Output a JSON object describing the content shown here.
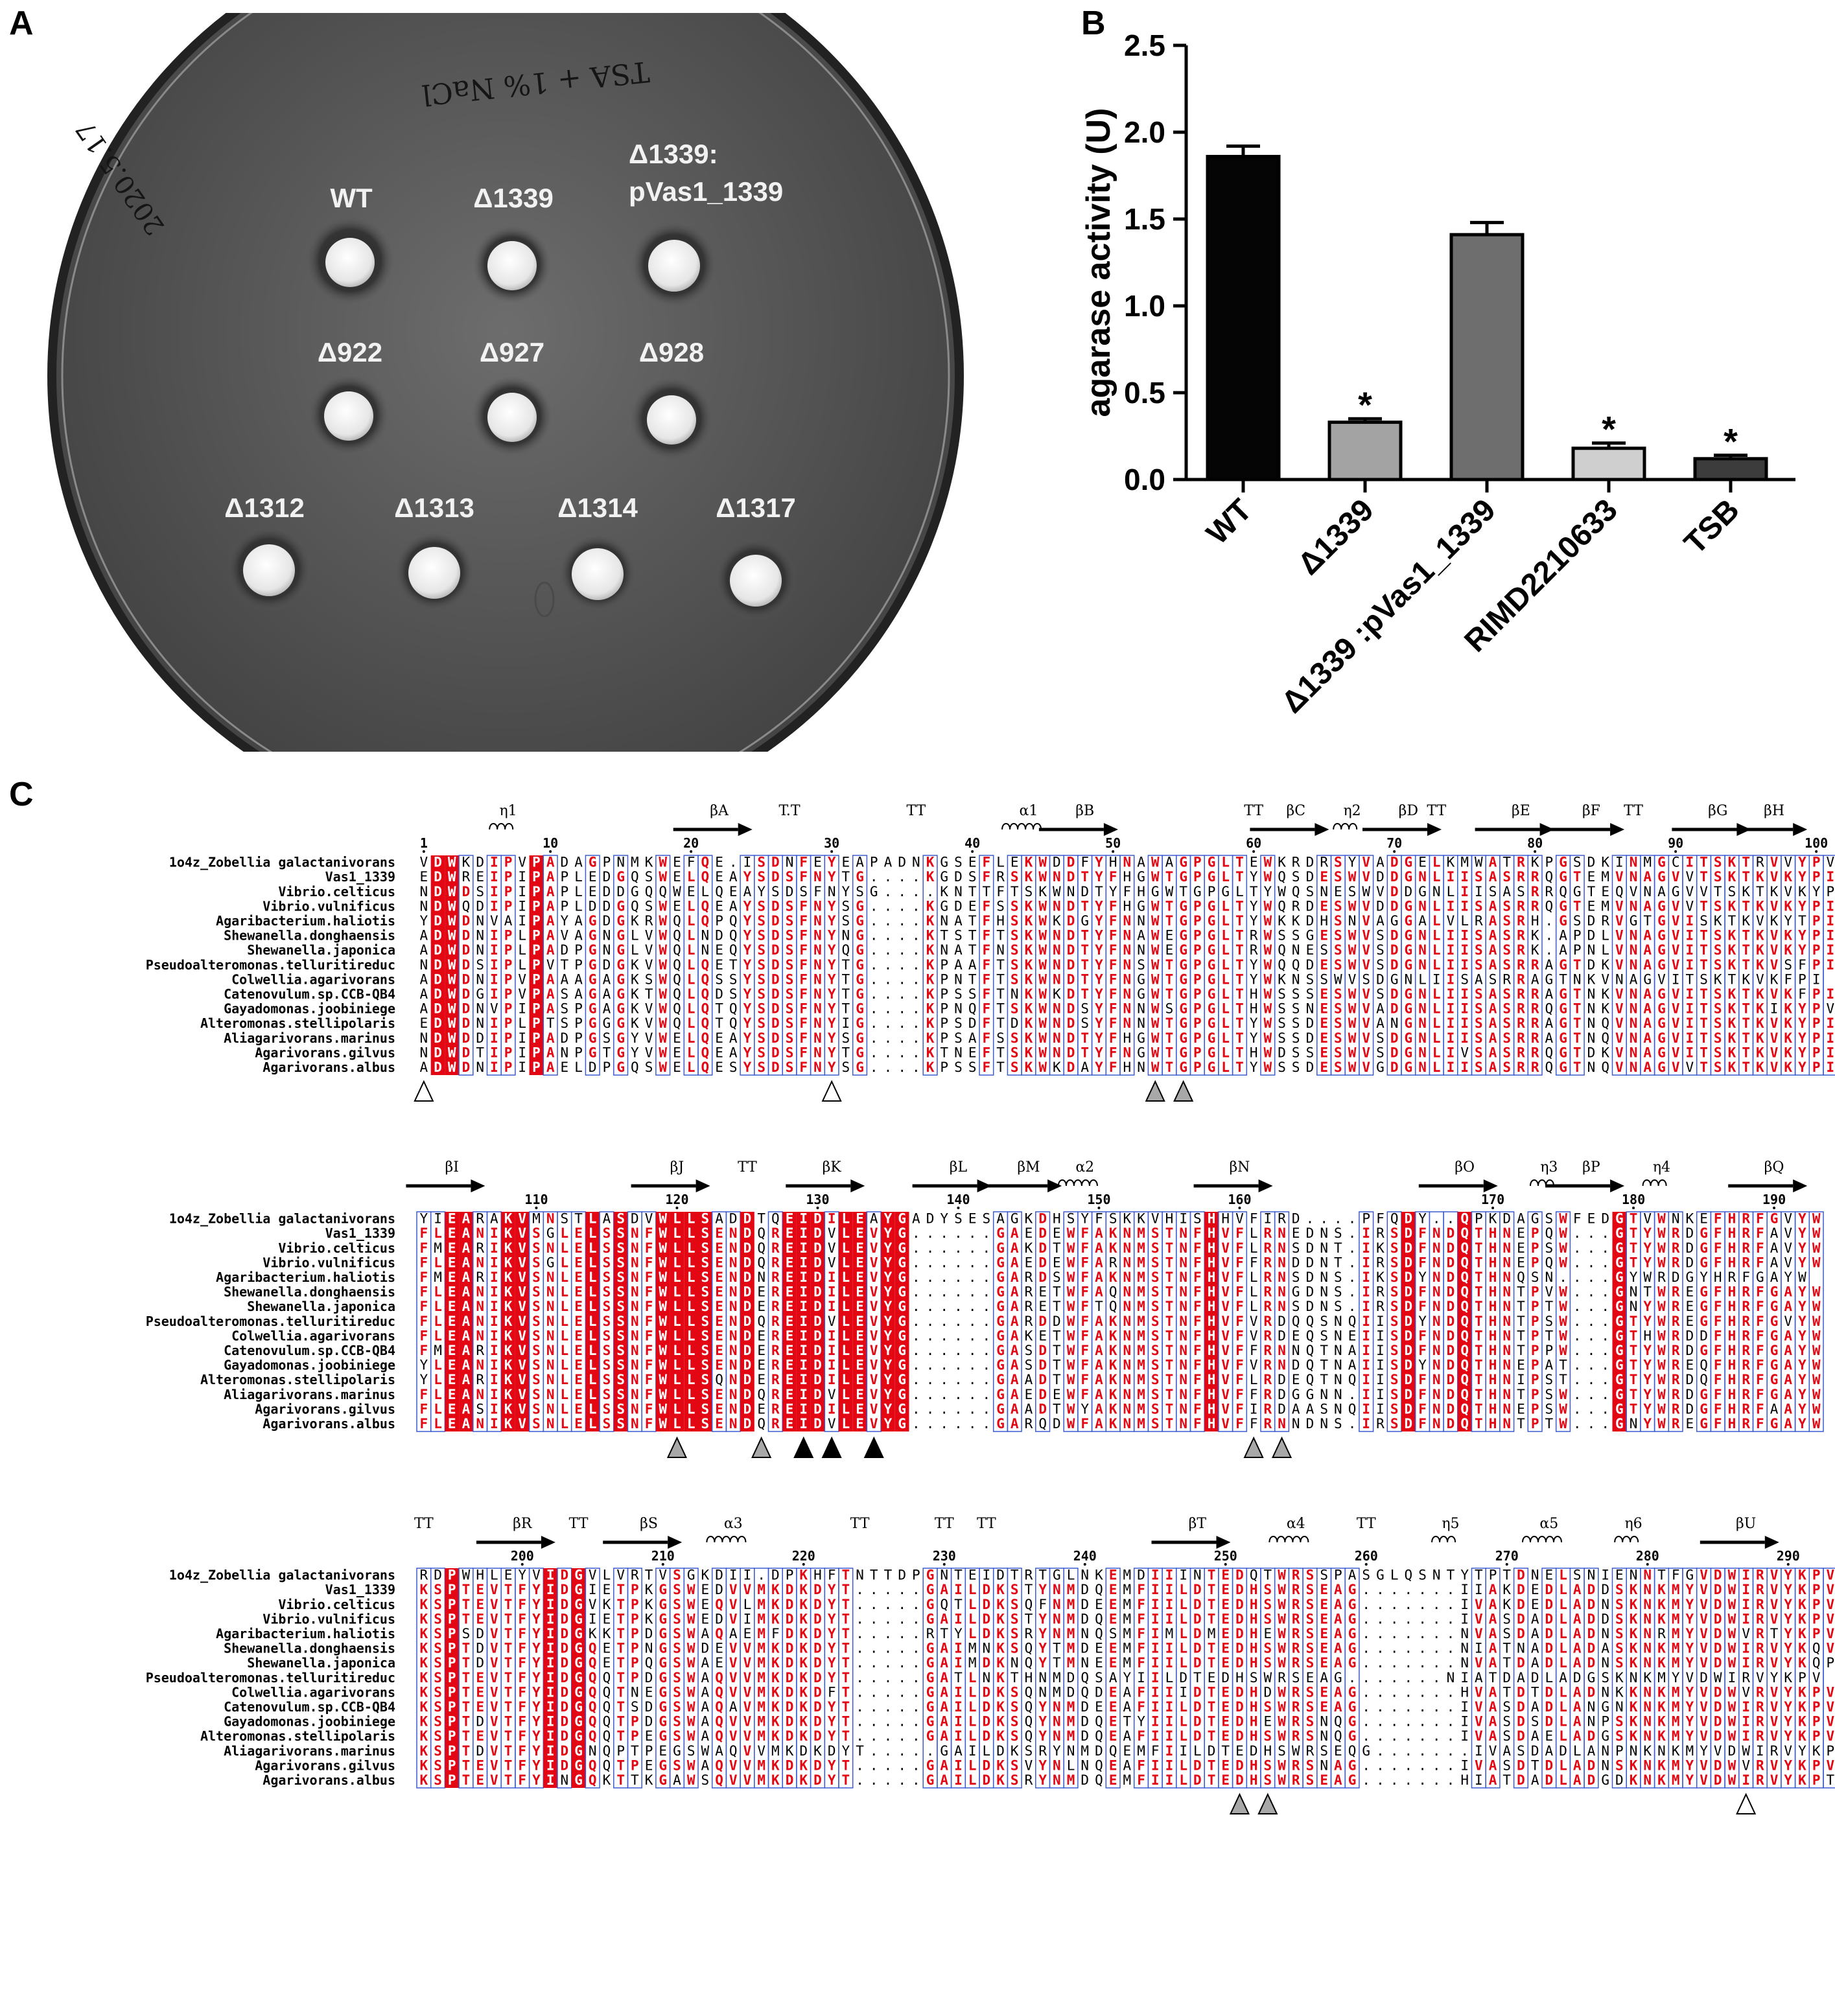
{
  "panels": {
    "a": "A",
    "b": "B",
    "c": "C"
  },
  "plate": {
    "handwriting_top": "TSA + 1% NaCl",
    "handwriting_left": "2020.5.17",
    "spots": [
      {
        "label": "WT"
      },
      {
        "label": "Δ1339"
      },
      {
        "label_line1": "Δ1339:",
        "label_line2": "pVas1_1339"
      },
      {
        "label": "Δ922"
      },
      {
        "label": "Δ927"
      },
      {
        "label": "Δ928"
      },
      {
        "label": "Δ1312"
      },
      {
        "label": "Δ1313"
      },
      {
        "label": "Δ1314"
      },
      {
        "label": "Δ1317"
      }
    ]
  },
  "chart_data": {
    "type": "bar",
    "title": "",
    "xlabel": "",
    "ylabel": "agarase activity (U)",
    "ylim": [
      0,
      2.5
    ],
    "yticks": [
      "0.0",
      "0.5",
      "1.0",
      "1.5",
      "2.0",
      "2.5"
    ],
    "categories": [
      "WT",
      "Δ1339",
      "Δ1339 :pVas1_1339",
      "RIMD2210633",
      "TSB"
    ],
    "values": [
      1.86,
      0.33,
      1.41,
      0.18,
      0.12
    ],
    "errors": [
      0.06,
      0.02,
      0.07,
      0.03,
      0.02
    ],
    "significance": [
      "",
      "*",
      "",
      "*",
      "*"
    ],
    "colors": [
      "#050505",
      "#a3a3a3",
      "#6e6e6e",
      "#cfcfcf",
      "#3c3c3c"
    ]
  },
  "alignment": {
    "species": [
      "1o4z_Zobellia galactanivorans",
      "Vas1_1339",
      "Vibrio.celticus",
      "Vibrio.vulnificus",
      "Agaribacterium.haliotis",
      "Shewanella.donghaensis",
      "Shewanella.japonica",
      "Pseudoalteromonas.telluritireduc",
      "Colwellia.agarivorans",
      "Catenovulum.sp.CCB-QB4",
      "Gayadomonas.joobiniege",
      "Alteromonas.stellipolaris",
      "Aliagarivorans.marinus",
      "Agarivorans.gilvus",
      "Agarivorans.albus"
    ],
    "blocks": [
      {
        "labels": [
          {
            "t": "η1",
            "c": 6
          },
          {
            "t": "βA",
            "c": 21
          },
          {
            "t": "T.T",
            "c": 26
          },
          {
            "t": "TT",
            "c": 35
          },
          {
            "t": "α1",
            "c": 43
          },
          {
            "t": "βB",
            "c": 47
          },
          {
            "t": "TT",
            "c": 59
          },
          {
            "t": "βC",
            "c": 62
          },
          {
            "t": "η2",
            "c": 66
          },
          {
            "t": "βD",
            "c": 70
          },
          {
            "t": "TT",
            "c": 72
          },
          {
            "t": "βE",
            "c": 78
          },
          {
            "t": "βF",
            "c": 83
          },
          {
            "t": "TT",
            "c": 86
          },
          {
            "t": "βG",
            "c": 92
          },
          {
            "t": "βH",
            "c": 96
          }
        ],
        "numbers": [
          {
            "t": "1",
            "c": 0
          },
          {
            "t": "10",
            "c": 9
          },
          {
            "t": "20",
            "c": 19
          },
          {
            "t": "30",
            "c": 29
          },
          {
            "t": "40",
            "c": 39
          },
          {
            "t": "50",
            "c": 49
          },
          {
            "t": "60",
            "c": 59
          },
          {
            "t": "70",
            "c": 69
          },
          {
            "t": "80",
            "c": 79
          },
          {
            "t": "90",
            "c": 89
          },
          {
            "t": "100",
            "c": 99
          }
        ],
        "rows": [
          "VDWKDIPVPADAGPNMKWEFQE.ISDNFEYEAPADNKGSEFLEKWDDFYHNAWAGPGLTEWKRDRSYVADGELKMWATRKPGSDKINMGCITSKTRVVYPV",
          "EDWREIPIPAPLEDGQSWELQEAYSDSFNYTG....KGDSFRSKWNDTYFHGWTGPGLTYWQSDESWVDDGNLIISASRRQGTEMVNAGVVTSKTKVKYPI",
          "NDWDSIPIPAPLEDDGQQWELQEAYSDSFNYSG....KNTTFTSKWNDTYFHGWTGPGLTYWQSNESWVDDGNLIISASRRQGTEQVNAGVVTSKTKVKYPI",
          "NDWQDIPIPAPLDDGQSWELQEAYSDSFNYSG....KGDEFSSKWNDTYFHGWTGPGLTYWQRDESWVDDGNLIISASRRQGTEMVNAGVVTSKTKVKYPI",
          "YDWDNVAIPAYAGDGKRWQLQPQYSDSFNYSG....KNATFHSKWKDGYFNNWTGPGLTYWKKDHSNVAGGALVLRASRH.GSDRVGTGVISKTKVKYTPI",
          "ADWDNIPLPAVAGNGLVWQLNDQYSDSFNYNG....KTSTFTSKWNDTYFNAWEGPGLTRWSSGESWVSDGNLIISASRK.APDLVNAGVITSKTKVKYPI",
          "ADWDNIPLPADPGNGLVWQLNEQYSDSFNYQG....KNATFNSKWNDTYFNNWEGPGLTRWQNESSWVSDGNLIISASRK.APNLVNAGVITSKTKVKYPI",
          "NDWDSIPLPVTPGDGKVWQLQETYSDSFNYTG....KPAAFTSKWNDTYFNSWTGPGLTYWQQDESWVSDGNLIISASRRAGTDKVNAGVITSKTKVSFPI",
          "ADWDNIPVPAAAGAGKSWQLQSSYSDSFNYTG....KPNTFTSKWNDTYFNGWTGPGLTYWKNSSWVSDGNLIISASRRAGTNKVNAGVITSKTKVKFPI",
          "ADWDGIPVPASAGAGKTWQLQDSYSDSFNYTG....KPSSFTNKWKDTYFNGWTGPGLTHWSSSESWVSDGNLIISASRRAGTNKVNAGVITSKTKVKFPI",
          "ADWDNVPIPASPGAGKVWQLQTQYSDSFNYTG....KPNQFTSKWNDSYFNNWSGPGLTHWSSNESWVADGNLIISASRRQGTNKVNAGVITSKTKIKYPV",
          "EDWDNIPLPTSPGGGKVWQLQTQYSDSFNYIG....KPSDFTDKWNDSYFNNWTGPGLTYWSSDESWVANGNLIISASRRAGTNQVNAGVITSKTKVKYPI",
          "NDWDDIPIPADPGSGYVWELQEAYSDSFNYSG....KPSAFSSKWNDTYFHGWTGPGLTYWSSDESWVSDGNLIISASRRAGTNQVNAGVITSKTKVKYPI",
          "NDWDTIPIPANPGTGYVWELQEAYSDSFNYTG....KTNEFTSKWNDTYFNGWTGPGLTHWDSSESWVSDGNLIVSASRRQGTDKVNAGVITSKTKVKYPI",
          "ADWDNIPIPAELDPGQSWELQESYSDSFNYSG....KPSSFTSKWKDAYFHNWTGPGLTYWSSDESWVGDGNLIISASRRQGTNQVNAGVVTSKTKVKYPI"
        ],
        "markers": [
          {
            "c": 0,
            "style": "open"
          },
          {
            "c": 29,
            "style": "open"
          },
          {
            "c": 52,
            "style": "gray"
          },
          {
            "c": 54,
            "style": "gray"
          }
        ]
      },
      {
        "labels": [
          {
            "t": "βI",
            "c": 2
          },
          {
            "t": "βJ",
            "c": 18
          },
          {
            "t": "TT",
            "c": 23
          },
          {
            "t": "βK",
            "c": 29
          },
          {
            "t": "βL",
            "c": 38
          },
          {
            "t": "βM",
            "c": 43
          },
          {
            "t": "α2",
            "c": 47
          },
          {
            "t": "βN",
            "c": 58
          },
          {
            "t": "βO",
            "c": 74
          },
          {
            "t": "η3",
            "c": 80
          },
          {
            "t": "βP",
            "c": 83
          },
          {
            "t": "η4",
            "c": 88
          },
          {
            "t": "βQ",
            "c": 96
          }
        ],
        "numbers": [
          {
            "t": "110",
            "c": 8
          },
          {
            "t": "120",
            "c": 18
          },
          {
            "t": "130",
            "c": 28
          },
          {
            "t": "140",
            "c": 38
          },
          {
            "t": "150",
            "c": 48
          },
          {
            "t": "160",
            "c": 58
          },
          {
            "t": "170",
            "c": 76
          },
          {
            "t": "180",
            "c": 86
          },
          {
            "t": "190",
            "c": 96
          }
        ],
        "rows": [
          "YIEARAKVMNSTLASDVWLLSADDTQEIDILEAYGADYSESAGKDHSYFSKKVHISHHVFIRD....PFQDY..QPKDAGSWFEDGTVWNKEFHRFGVYW",
          "FLEANIKVSGLELSSNFWLLSENDQREIDVLEVYG......GAEDEWFAKNMSTNFHVFLRNEDNS.IRSDFNDQTHNEPQW...GTYWRDGFHRFAVYW",
          "FMEARIKVSNLELSSNFWLLSENDQREIDVLEVYG......GAKDTWFAKNMSTNFHVFLRNSDNT.IKSDFNDQTHNEPSW...GTYWRDGFHRFAVYW",
          "FLEANIKVSGLELSSNFWLLSENDQREIDVLEVYG......GAEDEWFARNMSTNFHVFFRNDDNT.IRSDFNDQTHNEPQW...GTYWRDGFHRFAVYW",
          "FMEARIKVSNLELSSNFWLLSENDNREIDILEVYG......GARDSWFAKNMSTNFHVFLRNSDNS.IKSDYNDQTHNQSN....GYWRDGYHRFGAYW",
          "FLEANIKVSNLELSSNFWLLSENDEREIDILEVYG......GARETWFAQNMSTNFHVFLRNGDNS.IRSDFNDQTHNTPVW...GNTWREGFHRFGAYW",
          "FLEANIKVSNLELSSNFWLLSENDEREIDILEVYG......GARETWFTQNMSTNFHVFLRNSDNS.IRSDFNDQTHNTPTW...GNYWREGFHRFGAYW",
          "FLEANIKVSNLELSSNFWLLSENDQREIDVLEVYG......GARDDWFAKNMSTNFHVFVRDQQSNQIISDYNDQTHNTPSW...GTYWREGFHRFGVYW",
          "FLEANIKVSNLELSSNFWLLSENDEREIDILEVYG......GAKETWFAKNMSTNFHVFVRDEQSNEIISDFNDQTHNTPTW...GTHWRDDFHRFGAYW",
          "FMEARIKVSNLELSSNFWLLSENDEREIDILEVYG......GASDTWFAKNMSTNFHVFFRNNQTNAIISDFNDQTHNTPPW...GTYWRDGFHRFGAYW",
          "YLEANIKVSNLELSSNFWLLSENDEREIDILEVYG......GASDTWFAKNMSTNFHVFVRNDQTNAIISDYNDQTHNEPAT...GTYWREQFHRFGAYW",
          "YLEARIKVSNLELSSNFWLLSQNDEREIDILEVYG......GAADTWFAKNMSTNFHVFLRDEQTNQIISDFNDQTHNIPST...GTYWRDQFHRFGAYW",
          "FLEANIKVSNLELSSNFWLLSENDQREIDVLEVYG......GAEDEWFAKNMSTNFHVFFRDGGNN.IISDFNDQTHNTPSW...GTYWRDGFHRFGAYW",
          "FLEASIKVSNLELSSNFWLLSENDEREIDILEVYG......GAADTWYAKNMSTNFHVFIRDAASNQIISDFNDQTHNEPSW...GTYWRDGFHRFAAYW",
          "FLEANIKVSNLELSSNFWLLSENDQREIDVLEVYG......GARQDWFAKNMSTNFHVFFRNNDNS.IRSDFNDQTHNTPTW...GNYWREGFHRFGAYW"
        ],
        "markers": [
          {
            "c": 18,
            "style": "gray"
          },
          {
            "c": 24,
            "style": "gray"
          },
          {
            "c": 27,
            "style": "black"
          },
          {
            "c": 29,
            "style": "black"
          },
          {
            "c": 32,
            "style": "black"
          },
          {
            "c": 59,
            "style": "gray"
          },
          {
            "c": 61,
            "style": "gray"
          }
        ]
      },
      {
        "labels": [
          {
            "t": "TT",
            "c": 0
          },
          {
            "t": "βR",
            "c": 7
          },
          {
            "t": "TT",
            "c": 11
          },
          {
            "t": "βS",
            "c": 16
          },
          {
            "t": "α3",
            "c": 22
          },
          {
            "t": "TT",
            "c": 31
          },
          {
            "t": "TT",
            "c": 37
          },
          {
            "t": "TT",
            "c": 40
          },
          {
            "t": "βT",
            "c": 55
          },
          {
            "t": "α4",
            "c": 62
          },
          {
            "t": "TT",
            "c": 67
          },
          {
            "t": "η5",
            "c": 73
          },
          {
            "t": "α5",
            "c": 80
          },
          {
            "t": "η6",
            "c": 86
          },
          {
            "t": "βU",
            "c": 94
          }
        ],
        "numbers": [
          {
            "t": "200",
            "c": 7
          },
          {
            "t": "210",
            "c": 17
          },
          {
            "t": "220",
            "c": 27
          },
          {
            "t": "230",
            "c": 37
          },
          {
            "t": "240",
            "c": 47
          },
          {
            "t": "250",
            "c": 57
          },
          {
            "t": "260",
            "c": 67
          },
          {
            "t": "270",
            "c": 77
          },
          {
            "t": "280",
            "c": 87
          },
          {
            "t": "290",
            "c": 97
          }
        ],
        "rows": [
          "RDPWHLEYVIDGVLVRTVSGKDII.DPKHFTNTTDPGNTEIDTRTGLNKEMDIIINTEDQTWRSSPASGLQSNTYTPTDNELSNIENNTFGVDWIRVYKPV",
          "KSPTEVTFYIDGIETPKGSWEDVVMKDKDYT.....GAILDKSTYNMDQEMFIILDTEDHSWRSEAG.......IIAKDEDLADDSKNKMYVDWIRVYKPV",
          "KSPTEVTFYIDGVKTPKGSWEQVLMKDKDYT.....GQTLDKSQFNMDEEMFIILDTEDHSWRSEAG.......IVAKDEDLADNSKNKMYVDWIRVYKPV",
          "KSPTEVTFYIDGIETPKGSWEDVIMKDKDYT.....GAILDKSTYNMDQEMFIILDTEDHSWRSEAG.......IVASDADLADDSKNKMYVDWIRVYKPV",
          "KSPSDVTFYIDGKKTPDGSWAQAEMFDKDYT.....RTYLDKSRYNMNQSMFIMLDMEDHEWRSEAG.......NVASDADLADNSKNRMYVDWVRTYKPV",
          "KSPTDVTFYIDGQETPNGSWDEVVMKDKDYT.....GAIMNKSQYTMDEEMFIILDTEDHSWRSEAG.......NIATNADLADASKNKMYVDWIRVYKQV",
          "KSPTDVTFYIDGQETPQGSWAEVVMKDKDYT.....GAIMDKNQYTMNEEMFIILDTEDHSWRSEAG.......NVATDADLADNSKNKMYVDWIRVYKQPV",
          "KSPTEVTFYIDGQQTPDGSWAQVVMKDKDYT.....GATLNKTHNMDQSAYIILDTEDHSWRSEAG.......NIATDADLADGSKNKMYVDWIRVYKPV",
          "KSPTEVTFYIDGQQTNEGSWAQVVMKDKDFT.....GAILDKSQNMDQDEAFIIIDTEDHDWRSEAG.......HVATDTDLADNKKNKMYVDWVRVYKPV",
          "KSPTEVTFYIDGQQTSDGSWAQAVMKDKDYT.....GAILDKSQYNMDEEAFIILDTEDHSWRSEAG.......IVASDADLANGNKNKMYVDWIRVYKPV",
          "KSPTDVTFYIDGQQTPDGSWAQVVMKDKDYT.....GAILDKSQYNMDQETYIILDTEDHEWRSNQG.......IVASDSDLANPSKNKMYVDWIRVYKPV",
          "KSPTEVTFYIDGQQTPEGSWAQVVMKDKDYT.....GAILDKSQYNMDQEAFIILDTEDHSWRSNQG.......IVASDAELADGSKNKMYVDWIRVYKPV",
          "KSPTDVTFYIDGNQPTPEGSWAQVVMKDKDYT.....GAILDKSRYNMDQEMFIILDTEDHSWRSEQG.......IVASDADLANPNKNKMYVDWIRVYKPV",
          "KSPTEVTFYIDGQQTPEGSWAQVVMKDKDYT.....GAILDKSVYNLNQEAFIILDTEDHSWRSNAG.......IVASDTDLADNSKNKMYVDWVRVYKPV",
          "KSPTEVTFYINGQKTTKGAWSQVVMKDKDYT.....GAILDKSRYNMDQEMFIILDTEDHSWRSEAG.......HIATDADLADGDKNKMYVDWIRVYKPTV"
        ],
        "markers": [
          {
            "c": 58,
            "style": "gray"
          },
          {
            "c": 60,
            "style": "gray"
          },
          {
            "c": 94,
            "style": "open"
          }
        ]
      }
    ]
  }
}
